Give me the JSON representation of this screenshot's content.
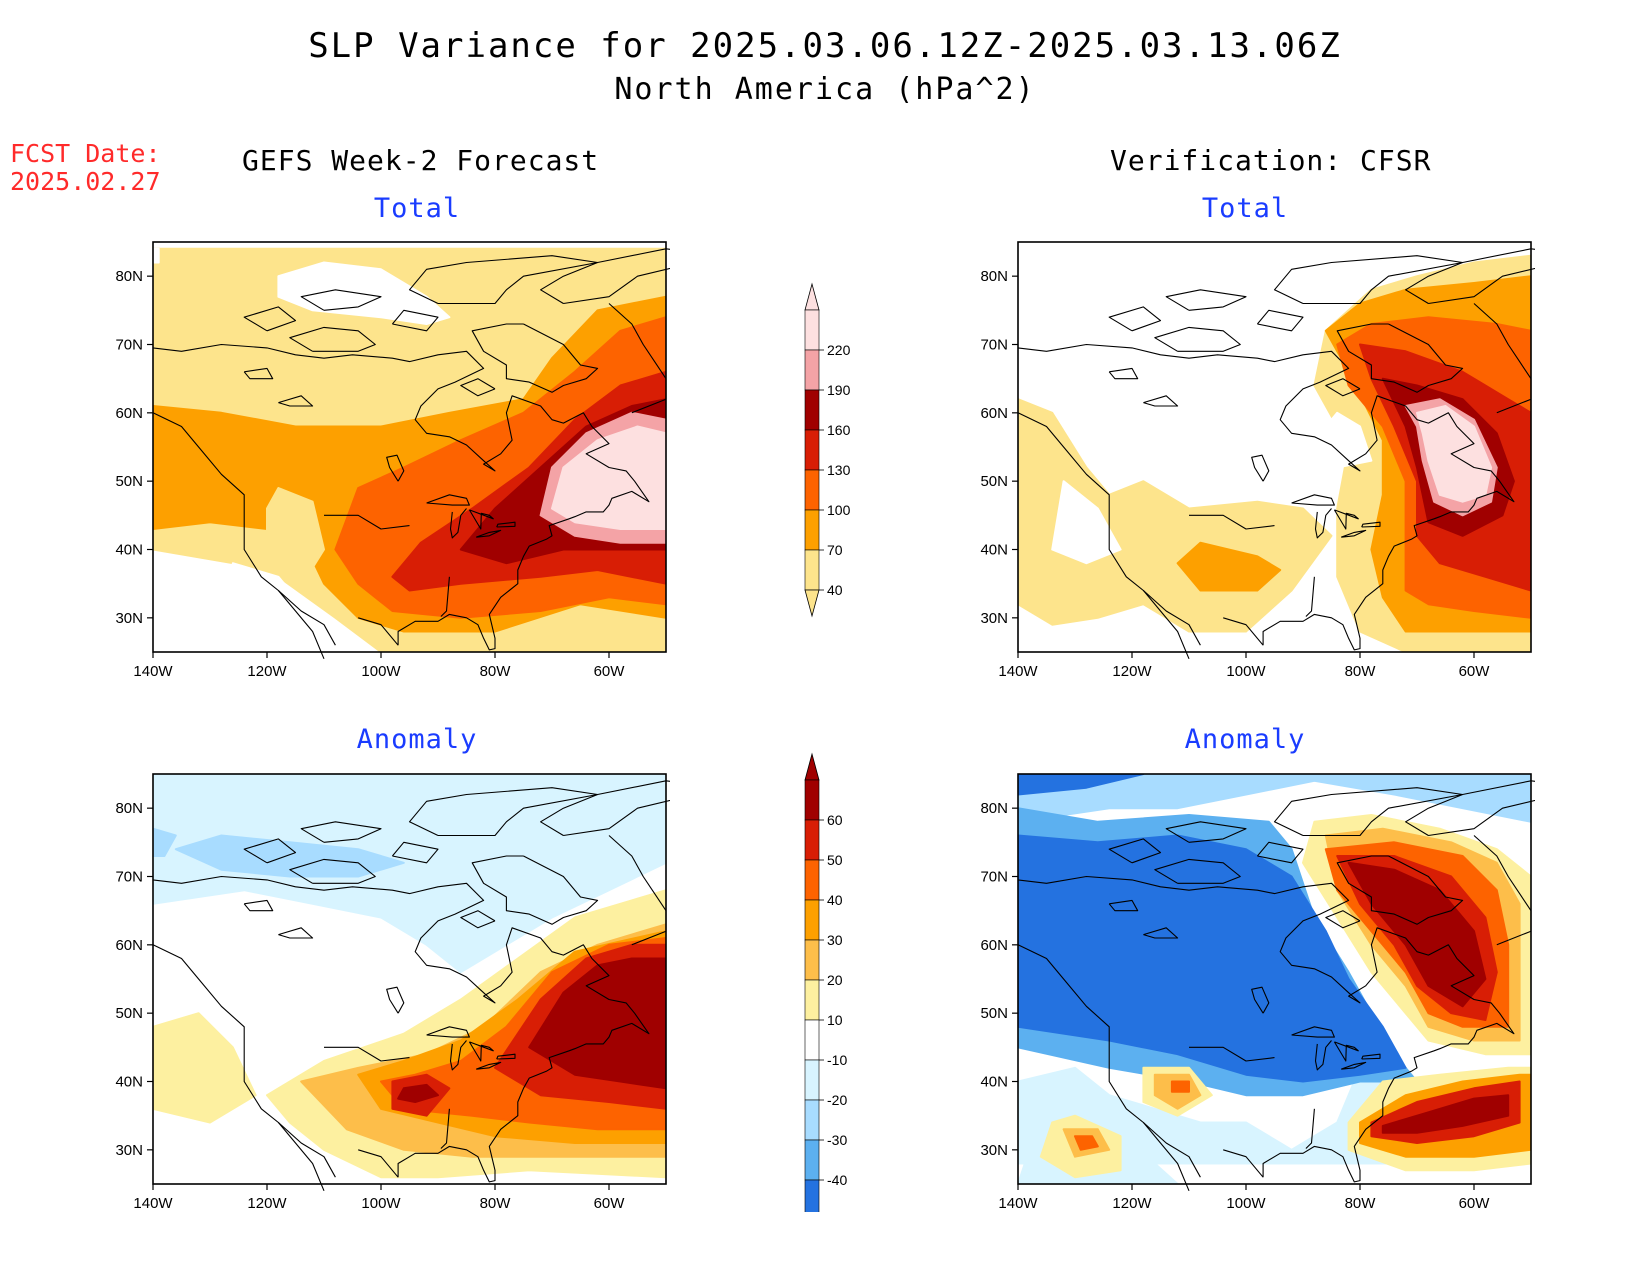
{
  "header": {
    "title": "SLP Variance for 2025.03.06.12Z-2025.03.13.06Z",
    "subtitle": "North America (hPa^2)",
    "fcst_label": "FCST Date:",
    "fcst_date": "2025.02.27"
  },
  "columns": {
    "left_title": "GEFS Week-2 Forecast",
    "right_title": "Verification: CFSR"
  },
  "panels": {
    "top_left_title": "Total",
    "top_right_title": "Total",
    "bottom_left_title": "Anomaly",
    "bottom_right_title": "Anomaly"
  },
  "axes": {
    "lon_labels": [
      "140W",
      "120W",
      "100W",
      "80W",
      "60W"
    ],
    "lat_labels": [
      "80N",
      "70N",
      "60N",
      "50N",
      "40N",
      "30N"
    ]
  },
  "colorbar_total": {
    "labels": [
      "220",
      "190",
      "160",
      "130",
      "100",
      "70",
      "40"
    ],
    "colors": [
      "#fde0e0",
      "#f4a3a6",
      "#a00000",
      "#d81e05",
      "#fd6300",
      "#fda000",
      "#fde48c"
    ]
  },
  "colorbar_anomaly": {
    "labels": [
      "60",
      "50",
      "40",
      "30",
      "20",
      "10",
      "-10",
      "-20",
      "-30",
      "-40"
    ],
    "colors": [
      "#a00000",
      "#d81e05",
      "#fd6300",
      "#fda000",
      "#fdbe4a",
      "#fdf0a0",
      "#ffffff",
      "#d8f4ff",
      "#a8dcff",
      "#5cb0f0",
      "#2472e0"
    ]
  },
  "palette": {
    "white": "#ffffff",
    "y1": "#fde48c",
    "o1": "#fda000",
    "o2": "#fd6300",
    "r1": "#d81e05",
    "r2": "#a00000",
    "p1": "#f4a3a6",
    "p2": "#fde0e0",
    "lb1": "#d8f4ff",
    "lb2": "#a8dcff",
    "b1": "#5cb0f0",
    "b2": "#2472e0",
    "ay1": "#fdf0a0",
    "ay2": "#fdbe4a"
  }
}
